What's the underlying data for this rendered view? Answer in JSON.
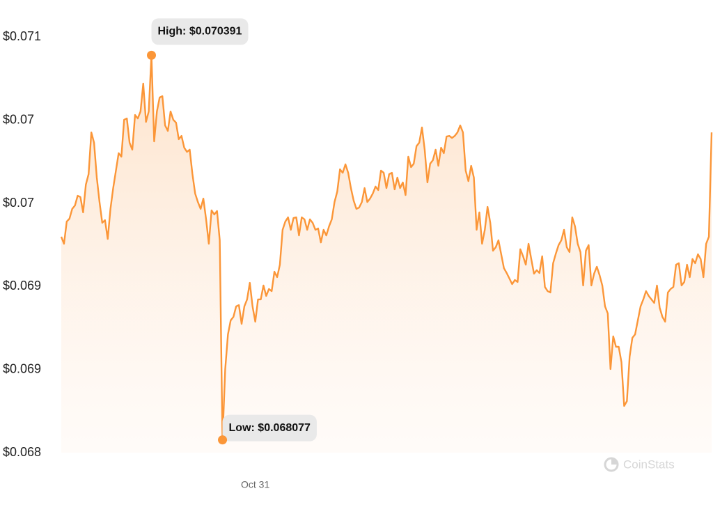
{
  "chart_data": {
    "type": "line",
    "series": [
      {
        "color": "#fb9638",
        "values": [
          0.069299,
          0.069257,
          0.069391,
          0.069408,
          0.069467,
          0.069487,
          0.069546,
          0.069538,
          0.069446,
          0.069613,
          0.069676,
          0.069927,
          0.069865,
          0.069655,
          0.069508,
          0.069383,
          0.069399,
          0.069286,
          0.069467,
          0.069592,
          0.069697,
          0.069802,
          0.069781,
          0.070003,
          0.070011,
          0.069865,
          0.069823,
          0.070032,
          0.070011,
          0.070053,
          0.070221,
          0.06999,
          0.070053,
          0.070391,
          0.069873,
          0.070053,
          0.070137,
          0.070145,
          0.069969,
          0.069936,
          0.070053,
          0.070003,
          0.069986,
          0.069886,
          0.069906,
          0.069835,
          0.06981,
          0.069823,
          0.069676,
          0.069559,
          0.069508,
          0.069467,
          0.069529,
          0.069404,
          0.069257,
          0.069458,
          0.069433,
          0.069454,
          0.069278,
          0.068077,
          0.068503,
          0.068712,
          0.068796,
          0.068817,
          0.06888,
          0.068888,
          0.068775,
          0.06888,
          0.068922,
          0.069022,
          0.06888,
          0.068788,
          0.068922,
          0.068922,
          0.069006,
          0.068943,
          0.068985,
          0.068972,
          0.069089,
          0.069056,
          0.069131,
          0.069341,
          0.069391,
          0.069416,
          0.069341,
          0.069412,
          0.069416,
          0.069307,
          0.069416,
          0.069404,
          0.069341,
          0.069404,
          0.069383,
          0.069341,
          0.069349,
          0.069265,
          0.069341,
          0.069307,
          0.069362,
          0.069404,
          0.069508,
          0.069571,
          0.069705,
          0.069684,
          0.069735,
          0.069684,
          0.069592,
          0.069517,
          0.069467,
          0.069475,
          0.069508,
          0.069592,
          0.069508,
          0.069529,
          0.069559,
          0.069601,
          0.06958,
          0.069697,
          0.069684,
          0.069592,
          0.069676,
          0.069684,
          0.069584,
          0.069655,
          0.069592,
          0.069626,
          0.06955,
          0.069781,
          0.069718,
          0.069739,
          0.069844,
          0.069865,
          0.069957,
          0.069823,
          0.069626,
          0.069739,
          0.06976,
          0.069823,
          0.069726,
          0.069835,
          0.069802,
          0.069902,
          0.069906,
          0.069894,
          0.069906,
          0.069927,
          0.069969,
          0.069927,
          0.069697,
          0.069634,
          0.069726,
          0.069655,
          0.069341,
          0.069446,
          0.069257,
          0.069341,
          0.069479,
          0.069383,
          0.069215,
          0.069236,
          0.069278,
          0.069194,
          0.06911,
          0.069081,
          0.069048,
          0.069014,
          0.069039,
          0.069027,
          0.069224,
          0.069182,
          0.069131,
          0.069257,
          0.069165,
          0.069077,
          0.069098,
          0.069081,
          0.069182,
          0.068997,
          0.068972,
          0.068964,
          0.06914,
          0.069198,
          0.069249,
          0.069278,
          0.069341,
          0.069236,
          0.069207,
          0.069416,
          0.069362,
          0.069257,
          0.069207,
          0.069006,
          0.069215,
          0.069249,
          0.069006,
          0.069077,
          0.069119,
          0.069068,
          0.069006,
          0.06888,
          0.068838,
          0.068503,
          0.0687,
          0.068637,
          0.068637,
          0.068545,
          0.068281,
          0.06831,
          0.068578,
          0.068691,
          0.068712,
          0.068796,
          0.06888,
          0.068922,
          0.068972,
          0.068943,
          0.068922,
          0.068901,
          0.069006,
          0.068872,
          0.068817,
          0.068788,
          0.068964,
          0.068985,
          0.068997,
          0.069131,
          0.06914,
          0.069006,
          0.069027,
          0.069131,
          0.069056,
          0.069165,
          0.06914,
          0.069194,
          0.069165,
          0.069056,
          0.069257,
          0.069299,
          0.069927
        ]
      }
    ],
    "categories": [
      null,
      null,
      null,
      null,
      null,
      null,
      null,
      null,
      null,
      null,
      null,
      null,
      null,
      null,
      null,
      null,
      null,
      null,
      null,
      null,
      null,
      null,
      null,
      null,
      null,
      null,
      null,
      null,
      null,
      null,
      null,
      null,
      null,
      null,
      null,
      null,
      null,
      null,
      null,
      null,
      null,
      null,
      null,
      null,
      null,
      null,
      null,
      null,
      null,
      null,
      null,
      null,
      null,
      null,
      null,
      null,
      null,
      null,
      null,
      null,
      null,
      null,
      null,
      null,
      null,
      null,
      null,
      null,
      null,
      null,
      null,
      "Oct 31",
      null,
      null,
      null,
      null,
      null,
      null,
      null,
      null,
      null,
      null,
      null,
      null,
      null,
      null,
      null,
      null,
      null,
      null,
      null,
      null,
      null,
      null,
      null,
      null,
      null,
      null,
      null,
      null,
      null,
      null,
      null,
      null,
      null,
      null,
      null,
      null,
      null,
      null,
      null,
      null,
      null,
      null,
      null,
      null,
      null,
      null,
      null,
      null,
      null,
      null,
      null,
      null,
      null,
      null,
      null,
      null,
      null,
      null,
      null,
      null,
      null,
      null,
      null,
      null,
      null,
      null,
      null,
      null,
      null,
      null,
      null,
      null,
      null,
      null,
      null,
      null,
      null,
      null,
      null,
      null,
      null,
      null,
      null,
      null,
      null,
      null,
      null,
      null,
      null,
      null,
      null,
      null,
      null,
      null,
      null,
      null,
      null,
      null,
      null,
      null,
      null,
      null,
      null,
      null,
      null,
      null,
      null,
      null,
      null,
      null,
      null,
      null,
      null,
      null,
      null,
      null,
      null,
      null,
      null,
      null,
      null,
      null,
      null,
      null,
      null,
      null,
      null,
      null,
      null,
      null,
      null,
      null,
      null,
      null,
      null,
      null,
      null,
      null,
      null,
      null,
      null,
      null,
      null,
      null,
      null,
      null,
      null,
      null,
      null,
      null,
      null,
      null,
      null,
      null,
      null,
      null,
      null,
      null,
      null,
      null,
      null,
      null,
      null,
      null,
      null,
      null,
      null
    ],
    "ylim": [
      0.068,
      0.0706
    ],
    "yticks": [
      {
        "value": 0.068,
        "label": "$0.068"
      },
      {
        "value": 0.0685,
        "label": "$0.069"
      },
      {
        "value": 0.069,
        "label": "$0.069"
      },
      {
        "value": 0.0695,
        "label": "$0.07"
      },
      {
        "value": 0.07,
        "label": "$0.07"
      },
      {
        "value": 0.0705,
        "label": "$0.071"
      }
    ],
    "grid": false,
    "annotations": {
      "high": "High: $0.070391",
      "low": "Low: $0.068077"
    },
    "watermark": "CoinStats"
  }
}
